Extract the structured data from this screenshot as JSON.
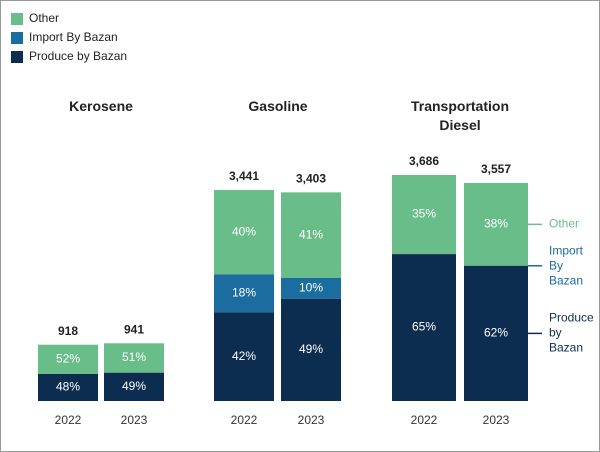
{
  "chart_data": {
    "type": "bar",
    "series": [
      {
        "name": "Other",
        "color": "#69bd88"
      },
      {
        "name": "Import By Bazan",
        "color": "#1b6c9f"
      },
      {
        "name": "Produce by Bazan",
        "color": "#0c2d50"
      }
    ],
    "groups": [
      {
        "title": "Kerosene",
        "categories": [
          "2022",
          "2023"
        ],
        "totals": [
          918,
          941
        ],
        "total_labels": [
          "918",
          "941"
        ],
        "values": [
          [
            52,
            51
          ],
          [
            null,
            null
          ],
          [
            48,
            49
          ]
        ],
        "value_labels": [
          [
            "52%",
            "51%"
          ],
          [
            null,
            null
          ],
          [
            "48%",
            "49%"
          ]
        ]
      },
      {
        "title": "Gasoline",
        "categories": [
          "2022",
          "2023"
        ],
        "totals": [
          3441,
          3403
        ],
        "total_labels": [
          "3,441",
          "3,403"
        ],
        "values": [
          [
            40,
            41
          ],
          [
            18,
            10
          ],
          [
            42,
            49
          ]
        ],
        "value_labels": [
          [
            "40%",
            "41%"
          ],
          [
            "18%",
            "10%"
          ],
          [
            "42%",
            "49%"
          ]
        ]
      },
      {
        "title": "Transportation Diesel",
        "categories": [
          "2022",
          "2023"
        ],
        "totals": [
          3686,
          3557
        ],
        "total_labels": [
          "3,686",
          "3,557"
        ],
        "values": [
          [
            35,
            38
          ],
          [
            null,
            null
          ],
          [
            65,
            62
          ]
        ],
        "value_labels": [
          [
            "35%",
            "38%"
          ],
          [
            null,
            null
          ],
          [
            "65%",
            "62%"
          ]
        ]
      }
    ]
  }
}
